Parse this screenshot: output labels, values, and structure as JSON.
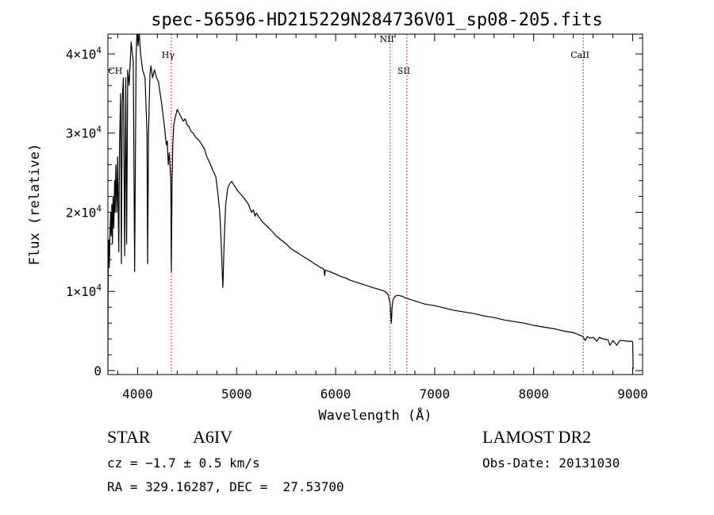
{
  "chart_data": {
    "type": "line",
    "title": "spec-56596-HD215229N284736V01_sp08-205.fits",
    "xlabel": "Wavelength (Å)",
    "ylabel": "Flux (relative)",
    "xlim": [
      3700,
      9100
    ],
    "ylim": [
      -500,
      42500
    ],
    "x_ticks": [
      4000,
      5000,
      6000,
      7000,
      8000,
      9000
    ],
    "x_tick_labels": [
      "4000",
      "5000",
      "6000",
      "7000",
      "8000",
      "9000"
    ],
    "y_ticks": [
      0,
      10000,
      20000,
      30000,
      40000
    ],
    "y_tick_labels": [
      {
        "mant": "0",
        "exp": ""
      },
      {
        "mant": "1×10",
        "exp": "4"
      },
      {
        "mant": "2×10",
        "exp": "4"
      },
      {
        "mant": "3×10",
        "exp": "4"
      },
      {
        "mant": "4×10",
        "exp": "4"
      }
    ],
    "series": [
      {
        "color": "#000000",
        "points": [
          [
            3700,
            200
          ],
          [
            3702,
            9000
          ],
          [
            3705,
            16000
          ],
          [
            3710,
            16500
          ],
          [
            3715,
            13000
          ],
          [
            3720,
            17000
          ],
          [
            3728,
            20000
          ],
          [
            3733,
            17000
          ],
          [
            3740,
            21000
          ],
          [
            3746,
            16000
          ],
          [
            3752,
            22000
          ],
          [
            3760,
            18000
          ],
          [
            3768,
            24000
          ],
          [
            3773,
            20000
          ],
          [
            3780,
            26000
          ],
          [
            3790,
            20000
          ],
          [
            3798,
            27000
          ],
          [
            3810,
            15000
          ],
          [
            3817,
            28000
          ],
          [
            3828,
            35000
          ],
          [
            3836,
            13500
          ],
          [
            3845,
            34000
          ],
          [
            3856,
            37000
          ],
          [
            3870,
            14500
          ],
          [
            3880,
            37000
          ],
          [
            3889,
            16000
          ],
          [
            3900,
            38000
          ],
          [
            3915,
            36000
          ],
          [
            3935,
            41500
          ],
          [
            3956,
            39000
          ],
          [
            3970,
            12500
          ],
          [
            3985,
            40000
          ],
          [
            3995,
            43000
          ],
          [
            4005,
            41000
          ],
          [
            4015,
            43000
          ],
          [
            4030,
            40000
          ],
          [
            4050,
            38000
          ],
          [
            4075,
            37000
          ],
          [
            4095,
            30000
          ],
          [
            4101,
            13500
          ],
          [
            4110,
            30000
          ],
          [
            4125,
            37500
          ],
          [
            4135,
            38500
          ],
          [
            4150,
            37000
          ],
          [
            4170,
            38000
          ],
          [
            4190,
            37000
          ],
          [
            4210,
            36500
          ],
          [
            4240,
            34000
          ],
          [
            4270,
            31000
          ],
          [
            4290,
            28500
          ],
          [
            4300,
            29000
          ],
          [
            4310,
            26000
          ],
          [
            4320,
            27500
          ],
          [
            4335,
            24000
          ],
          [
            4341,
            12500
          ],
          [
            4348,
            24000
          ],
          [
            4355,
            28500
          ],
          [
            4365,
            31000
          ],
          [
            4380,
            32000
          ],
          [
            4400,
            33000
          ],
          [
            4420,
            32500
          ],
          [
            4440,
            32000
          ],
          [
            4460,
            31500
          ],
          [
            4480,
            31800
          ],
          [
            4500,
            31000
          ],
          [
            4520,
            30800
          ],
          [
            4540,
            30200
          ],
          [
            4560,
            30000
          ],
          [
            4580,
            29600
          ],
          [
            4600,
            29300
          ],
          [
            4625,
            29000
          ],
          [
            4650,
            28500
          ],
          [
            4675,
            28000
          ],
          [
            4700,
            27000
          ],
          [
            4730,
            26200
          ],
          [
            4760,
            25300
          ],
          [
            4790,
            24500
          ],
          [
            4810,
            22500
          ],
          [
            4830,
            20000
          ],
          [
            4845,
            16000
          ],
          [
            4856,
            12000
          ],
          [
            4861,
            10500
          ],
          [
            4866,
            12500
          ],
          [
            4876,
            17000
          ],
          [
            4890,
            21000
          ],
          [
            4910,
            23000
          ],
          [
            4930,
            23600
          ],
          [
            4950,
            23900
          ],
          [
            4980,
            23300
          ],
          [
            5010,
            22700
          ],
          [
            5040,
            22300
          ],
          [
            5080,
            21700
          ],
          [
            5120,
            21000
          ],
          [
            5150,
            20000
          ],
          [
            5170,
            20300
          ],
          [
            5185,
            19500
          ],
          [
            5200,
            19900
          ],
          [
            5230,
            19300
          ],
          [
            5260,
            18800
          ],
          [
            5300,
            18300
          ],
          [
            5350,
            17700
          ],
          [
            5400,
            17000
          ],
          [
            5450,
            16500
          ],
          [
            5500,
            16000
          ],
          [
            5550,
            15400
          ],
          [
            5600,
            15000
          ],
          [
            5650,
            14600
          ],
          [
            5700,
            14200
          ],
          [
            5750,
            13800
          ],
          [
            5800,
            13400
          ],
          [
            5850,
            13000
          ],
          [
            5880,
            12800
          ],
          [
            5890,
            12000
          ],
          [
            5896,
            12700
          ],
          [
            5920,
            12600
          ],
          [
            5960,
            12400
          ],
          [
            6000,
            12200
          ],
          [
            6050,
            11900
          ],
          [
            6100,
            11700
          ],
          [
            6150,
            11400
          ],
          [
            6200,
            11200
          ],
          [
            6250,
            11000
          ],
          [
            6300,
            10800
          ],
          [
            6350,
            10600
          ],
          [
            6400,
            10400
          ],
          [
            6450,
            10200
          ],
          [
            6500,
            10000
          ],
          [
            6530,
            9600
          ],
          [
            6550,
            8500
          ],
          [
            6563,
            6000
          ],
          [
            6570,
            8000
          ],
          [
            6580,
            9000
          ],
          [
            6600,
            9400
          ],
          [
            6630,
            9500
          ],
          [
            6670,
            9400
          ],
          [
            6700,
            9200
          ],
          [
            6750,
            9000
          ],
          [
            6800,
            8800
          ],
          [
            6850,
            8600
          ],
          [
            6900,
            8400
          ],
          [
            6950,
            8300
          ],
          [
            7000,
            8200
          ],
          [
            7100,
            7900
          ],
          [
            7200,
            7600
          ],
          [
            7300,
            7400
          ],
          [
            7400,
            7200
          ],
          [
            7500,
            6900
          ],
          [
            7600,
            6700
          ],
          [
            7700,
            6400
          ],
          [
            7800,
            6200
          ],
          [
            7900,
            6000
          ],
          [
            8000,
            5700
          ],
          [
            8100,
            5500
          ],
          [
            8200,
            5300
          ],
          [
            8300,
            5000
          ],
          [
            8400,
            4800
          ],
          [
            8498,
            4300
          ],
          [
            8520,
            3800
          ],
          [
            8542,
            4300
          ],
          [
            8570,
            4100
          ],
          [
            8600,
            4200
          ],
          [
            8640,
            3700
          ],
          [
            8662,
            4200
          ],
          [
            8700,
            4000
          ],
          [
            8750,
            3900
          ],
          [
            8770,
            3200
          ],
          [
            8800,
            3800
          ],
          [
            8840,
            3200
          ],
          [
            8870,
            3800
          ],
          [
            8900,
            3800
          ],
          [
            8950,
            3700
          ],
          [
            8990,
            3700
          ],
          [
            9000,
            3600
          ],
          [
            9005,
            200
          ]
        ]
      }
    ],
    "lines": [
      {
        "x": 4340,
        "label": "Hγ",
        "label_y": 39500
      },
      {
        "x": 6550,
        "label": "NII",
        "label_y": 41500
      },
      {
        "x": 6720,
        "label": "SII",
        "label_y": 37500
      },
      {
        "x": 8500,
        "label": "CaII",
        "label_y": 39500
      },
      {
        "x": null,
        "label": "CH",
        "label_y": 37500,
        "label_at_x": 3735
      }
    ],
    "line_color": "#cc2a2a",
    "grid": false,
    "legend": "none"
  },
  "info": {
    "object_type": "STAR",
    "spectral_class": "A6IV",
    "survey": "LAMOST DR2",
    "redshift": "cz = −1.7 ± 0.5 km/s",
    "obs_date": "Obs-Date: 20131030",
    "coordinates": "RA = 329.16287, DEC =  27.53700"
  }
}
